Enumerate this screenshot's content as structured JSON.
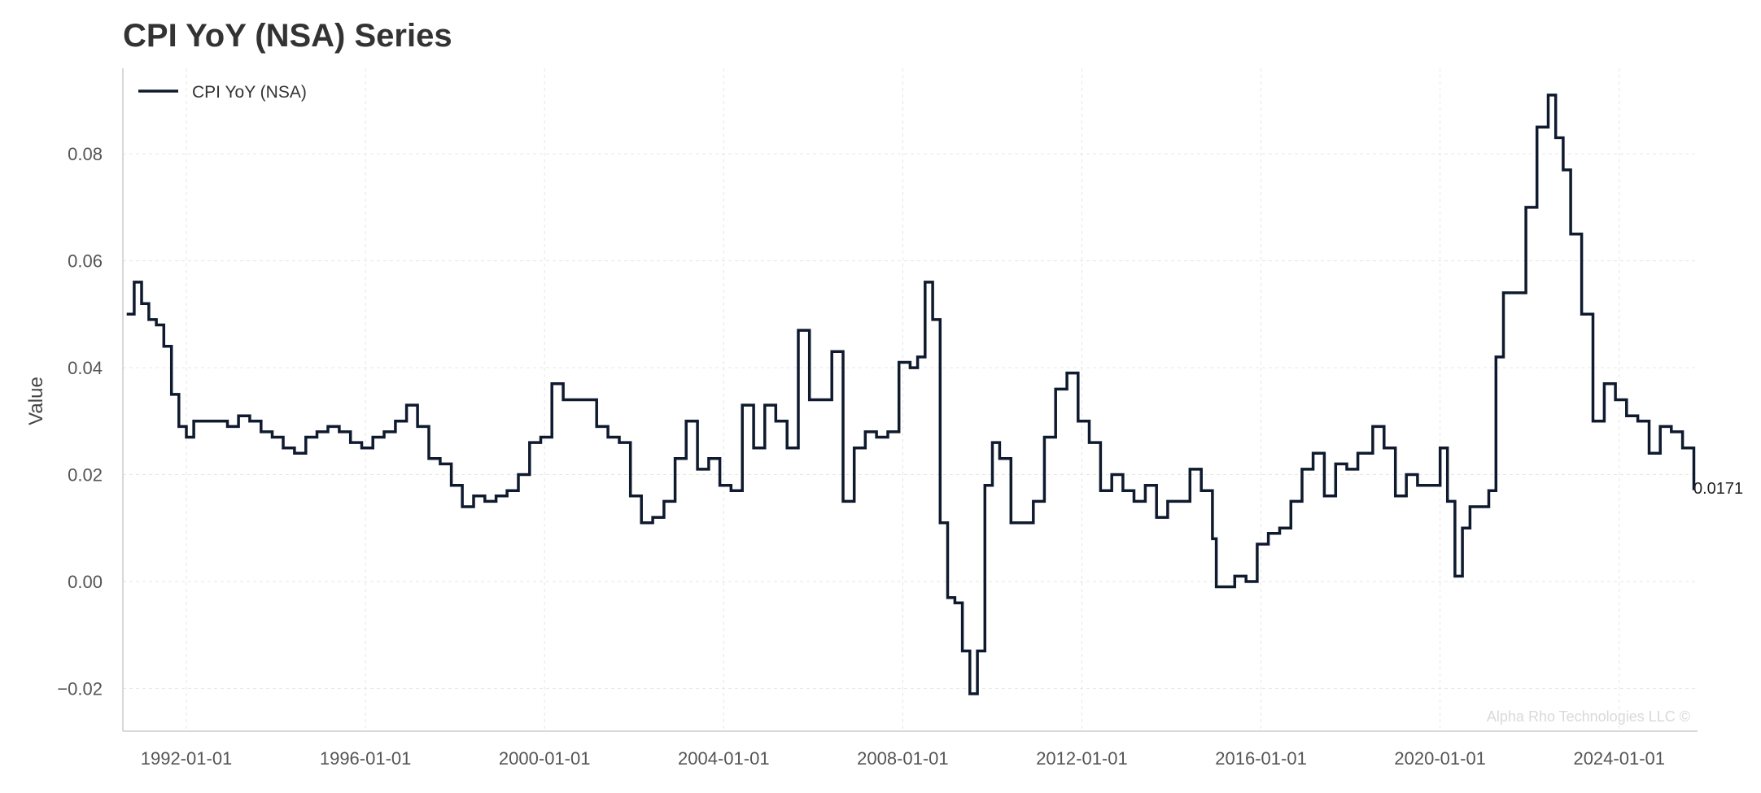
{
  "chart_data": {
    "type": "line",
    "title": "CPI YoY (NSA) Series",
    "xlabel": "",
    "ylabel": "Value",
    "xlim": [
      "1990-08-01",
      "2025-10-01"
    ],
    "ylim": [
      -0.028,
      0.096
    ],
    "x_ticks": [
      "1992-01-01",
      "1996-01-01",
      "2000-01-01",
      "2004-01-01",
      "2008-01-01",
      "2012-01-01",
      "2016-01-01",
      "2020-01-01",
      "2024-01-01"
    ],
    "y_ticks": [
      -0.02,
      0.0,
      0.02,
      0.04,
      0.06,
      0.08
    ],
    "y_tick_labels": [
      "−0.02",
      "0.00",
      "0.02",
      "0.04",
      "0.06",
      "0.08"
    ],
    "grid": true,
    "legend": "top-left",
    "last_value_label": "0.0171",
    "watermark": "Alpha Rho Technologies LLC ©",
    "line_color": "#0f1a2e",
    "series": [
      {
        "name": "CPI YoY (NSA)",
        "x": [
          "1990-09-01",
          "1990-11-01",
          "1991-01-01",
          "1991-03-01",
          "1991-05-01",
          "1991-07-01",
          "1991-09-01",
          "1991-11-01",
          "1992-01-01",
          "1992-03-01",
          "1992-06-01",
          "1992-09-01",
          "1992-12-01",
          "1993-03-01",
          "1993-06-01",
          "1993-09-01",
          "1993-12-01",
          "1994-03-01",
          "1994-06-01",
          "1994-09-01",
          "1994-12-01",
          "1995-03-01",
          "1995-06-01",
          "1995-09-01",
          "1995-12-01",
          "1996-03-01",
          "1996-06-01",
          "1996-09-01",
          "1996-12-01",
          "1997-03-01",
          "1997-06-01",
          "1997-09-01",
          "1997-12-01",
          "1998-03-01",
          "1998-06-01",
          "1998-09-01",
          "1998-12-01",
          "1999-03-01",
          "1999-06-01",
          "1999-09-01",
          "1999-12-01",
          "2000-03-01",
          "2000-06-01",
          "2000-09-01",
          "2000-12-01",
          "2001-03-01",
          "2001-06-01",
          "2001-09-01",
          "2001-12-01",
          "2002-03-01",
          "2002-06-01",
          "2002-09-01",
          "2002-12-01",
          "2003-03-01",
          "2003-06-01",
          "2003-09-01",
          "2003-12-01",
          "2004-03-01",
          "2004-06-01",
          "2004-09-01",
          "2004-12-01",
          "2005-03-01",
          "2005-06-01",
          "2005-09-01",
          "2005-12-01",
          "2006-03-01",
          "2006-06-01",
          "2006-09-01",
          "2006-12-01",
          "2007-03-01",
          "2007-06-01",
          "2007-09-01",
          "2007-12-01",
          "2008-03-01",
          "2008-05-01",
          "2008-07-01",
          "2008-09-01",
          "2008-11-01",
          "2009-01-01",
          "2009-03-01",
          "2009-05-01",
          "2009-07-01",
          "2009-09-01",
          "2009-11-01",
          "2010-01-01",
          "2010-03-01",
          "2010-06-01",
          "2010-09-01",
          "2010-12-01",
          "2011-03-01",
          "2011-06-01",
          "2011-09-01",
          "2011-12-01",
          "2012-03-01",
          "2012-06-01",
          "2012-09-01",
          "2012-12-01",
          "2013-03-01",
          "2013-06-01",
          "2013-09-01",
          "2013-12-01",
          "2014-03-01",
          "2014-06-01",
          "2014-09-01",
          "2014-12-01",
          "2015-01-01",
          "2015-03-01",
          "2015-06-01",
          "2015-09-01",
          "2015-12-01",
          "2016-03-01",
          "2016-06-01",
          "2016-09-01",
          "2016-12-01",
          "2017-03-01",
          "2017-06-01",
          "2017-09-01",
          "2017-12-01",
          "2018-03-01",
          "2018-07-01",
          "2018-10-01",
          "2019-01-01",
          "2019-04-01",
          "2019-07-01",
          "2019-10-01",
          "2020-01-01",
          "2020-03-01",
          "2020-05-01",
          "2020-07-01",
          "2020-09-01",
          "2020-12-01",
          "2021-02-01",
          "2021-04-01",
          "2021-06-01",
          "2021-09-01",
          "2021-12-01",
          "2022-03-01",
          "2022-06-01",
          "2022-08-01",
          "2022-10-01",
          "2022-12-01",
          "2023-03-01",
          "2023-06-01",
          "2023-09-01",
          "2023-12-01",
          "2024-03-01",
          "2024-06-01",
          "2024-09-01",
          "2024-12-01",
          "2025-03-01",
          "2025-06-01",
          "2025-09-01"
        ],
        "values": [
          0.05,
          0.056,
          0.052,
          0.049,
          0.048,
          0.044,
          0.035,
          0.029,
          0.027,
          0.03,
          0.03,
          0.03,
          0.029,
          0.031,
          0.03,
          0.028,
          0.027,
          0.025,
          0.024,
          0.027,
          0.028,
          0.029,
          0.028,
          0.026,
          0.025,
          0.027,
          0.028,
          0.03,
          0.033,
          0.029,
          0.023,
          0.022,
          0.018,
          0.014,
          0.016,
          0.015,
          0.016,
          0.017,
          0.02,
          0.026,
          0.027,
          0.037,
          0.034,
          0.034,
          0.034,
          0.029,
          0.027,
          0.026,
          0.016,
          0.011,
          0.012,
          0.015,
          0.023,
          0.03,
          0.021,
          0.023,
          0.018,
          0.017,
          0.033,
          0.025,
          0.033,
          0.03,
          0.025,
          0.047,
          0.034,
          0.034,
          0.043,
          0.015,
          0.025,
          0.028,
          0.027,
          0.028,
          0.041,
          0.04,
          0.042,
          0.056,
          0.049,
          0.011,
          -0.003,
          -0.004,
          -0.013,
          -0.021,
          -0.013,
          0.018,
          0.026,
          0.023,
          0.011,
          0.011,
          0.015,
          0.027,
          0.036,
          0.039,
          0.03,
          0.026,
          0.017,
          0.02,
          0.017,
          0.015,
          0.018,
          0.012,
          0.015,
          0.015,
          0.021,
          0.017,
          0.008,
          -0.001,
          -0.001,
          0.001,
          0.0,
          0.007,
          0.009,
          0.01,
          0.015,
          0.021,
          0.024,
          0.016,
          0.022,
          0.021,
          0.024,
          0.029,
          0.025,
          0.016,
          0.02,
          0.018,
          0.018,
          0.025,
          0.015,
          0.001,
          0.01,
          0.014,
          0.014,
          0.017,
          0.042,
          0.054,
          0.054,
          0.07,
          0.085,
          0.091,
          0.083,
          0.077,
          0.065,
          0.05,
          0.03,
          0.037,
          0.034,
          0.031,
          0.03,
          0.024,
          0.029,
          0.028,
          0.025,
          0.0171
        ]
      }
    ]
  }
}
